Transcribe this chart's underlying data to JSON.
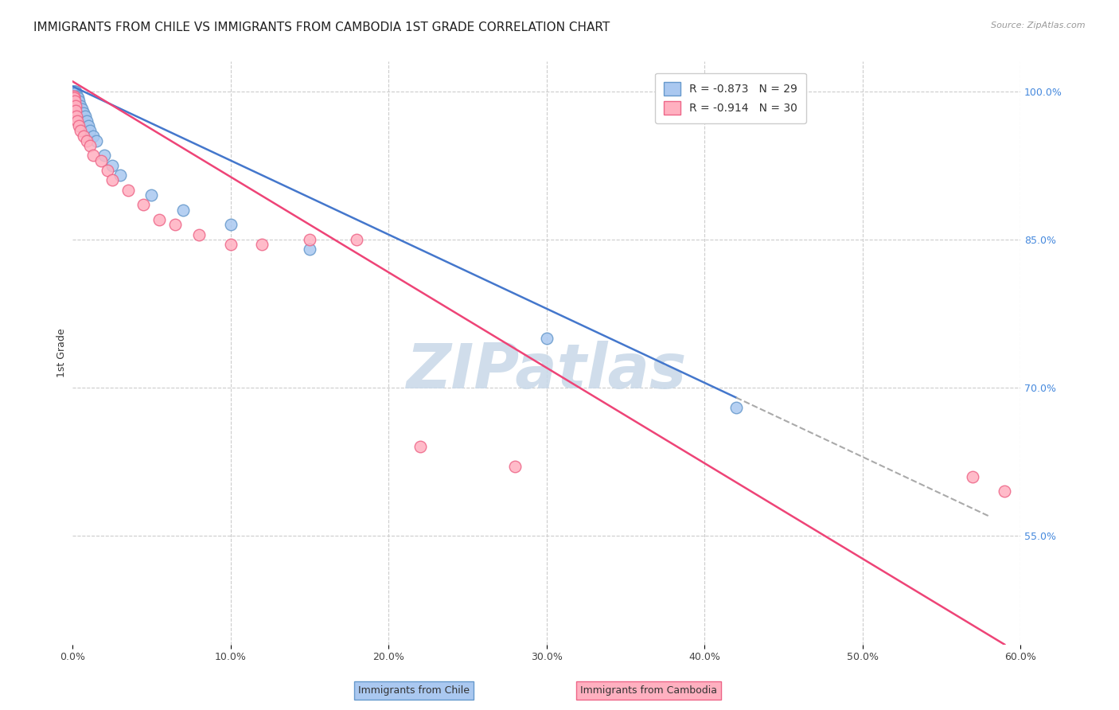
{
  "title": "IMMIGRANTS FROM CHILE VS IMMIGRANTS FROM CAMBODIA 1ST GRADE CORRELATION CHART",
  "source": "Source: ZipAtlas.com",
  "ylabel": "1st Grade",
  "xlabel_ticks": [
    "0.0%",
    "10.0%",
    "20.0%",
    "30.0%",
    "40.0%",
    "50.0%",
    "60.0%"
  ],
  "xlabel_vals": [
    0.0,
    10.0,
    20.0,
    30.0,
    40.0,
    50.0,
    60.0
  ],
  "ylabel_ticks_right": [
    "100.0%",
    "85.0%",
    "70.0%",
    "55.0%"
  ],
  "ylabel_vals_right": [
    100.0,
    85.0,
    70.0,
    55.0
  ],
  "xlim": [
    0.0,
    60.0
  ],
  "ylim": [
    44.0,
    103.0
  ],
  "chile_color": "#aac8f0",
  "chile_edge": "#6699cc",
  "cambodia_color": "#ffb0c0",
  "cambodia_edge": "#ee6688",
  "line_chile_color": "#4477cc",
  "line_cambodia_color": "#ee4477",
  "dashed_color": "#aaaaaa",
  "R_chile": -0.873,
  "N_chile": 29,
  "R_cambodia": -0.914,
  "N_cambodia": 30,
  "chile_x": [
    0.05,
    0.08,
    0.1,
    0.12,
    0.15,
    0.18,
    0.2,
    0.25,
    0.3,
    0.35,
    0.4,
    0.5,
    0.6,
    0.7,
    0.8,
    0.9,
    1.0,
    1.1,
    1.3,
    1.5,
    2.0,
    2.5,
    3.0,
    5.0,
    7.0,
    10.0,
    15.0,
    30.0,
    42.0
  ],
  "chile_y": [
    100.0,
    100.0,
    100.0,
    100.0,
    100.0,
    100.0,
    99.8,
    99.5,
    99.5,
    99.3,
    99.0,
    98.5,
    98.2,
    97.8,
    97.5,
    97.0,
    96.5,
    96.0,
    95.5,
    95.0,
    93.5,
    92.5,
    91.5,
    89.5,
    88.0,
    86.5,
    84.0,
    75.0,
    68.0
  ],
  "cambodia_x": [
    0.05,
    0.08,
    0.1,
    0.15,
    0.18,
    0.2,
    0.25,
    0.3,
    0.4,
    0.5,
    0.7,
    0.9,
    1.1,
    1.3,
    1.8,
    2.2,
    2.5,
    3.5,
    4.5,
    5.5,
    6.5,
    8.0,
    10.0,
    12.0,
    15.0,
    18.0,
    22.0,
    28.0,
    57.0,
    59.0
  ],
  "cambodia_y": [
    99.5,
    99.5,
    99.3,
    99.0,
    98.5,
    98.0,
    97.5,
    97.0,
    96.5,
    96.0,
    95.5,
    95.0,
    94.5,
    93.5,
    93.0,
    92.0,
    91.0,
    90.0,
    88.5,
    87.0,
    86.5,
    85.5,
    84.5,
    84.5,
    85.0,
    85.0,
    64.0,
    62.0,
    61.0,
    59.5
  ],
  "watermark": "ZIPatlas",
  "watermark_color": "#c8d8e8",
  "grid_color": "#cccccc",
  "background_color": "#ffffff",
  "title_fontsize": 11,
  "axis_label_fontsize": 9,
  "tick_fontsize": 9,
  "legend_fontsize": 10,
  "right_tick_color": "#4488dd"
}
